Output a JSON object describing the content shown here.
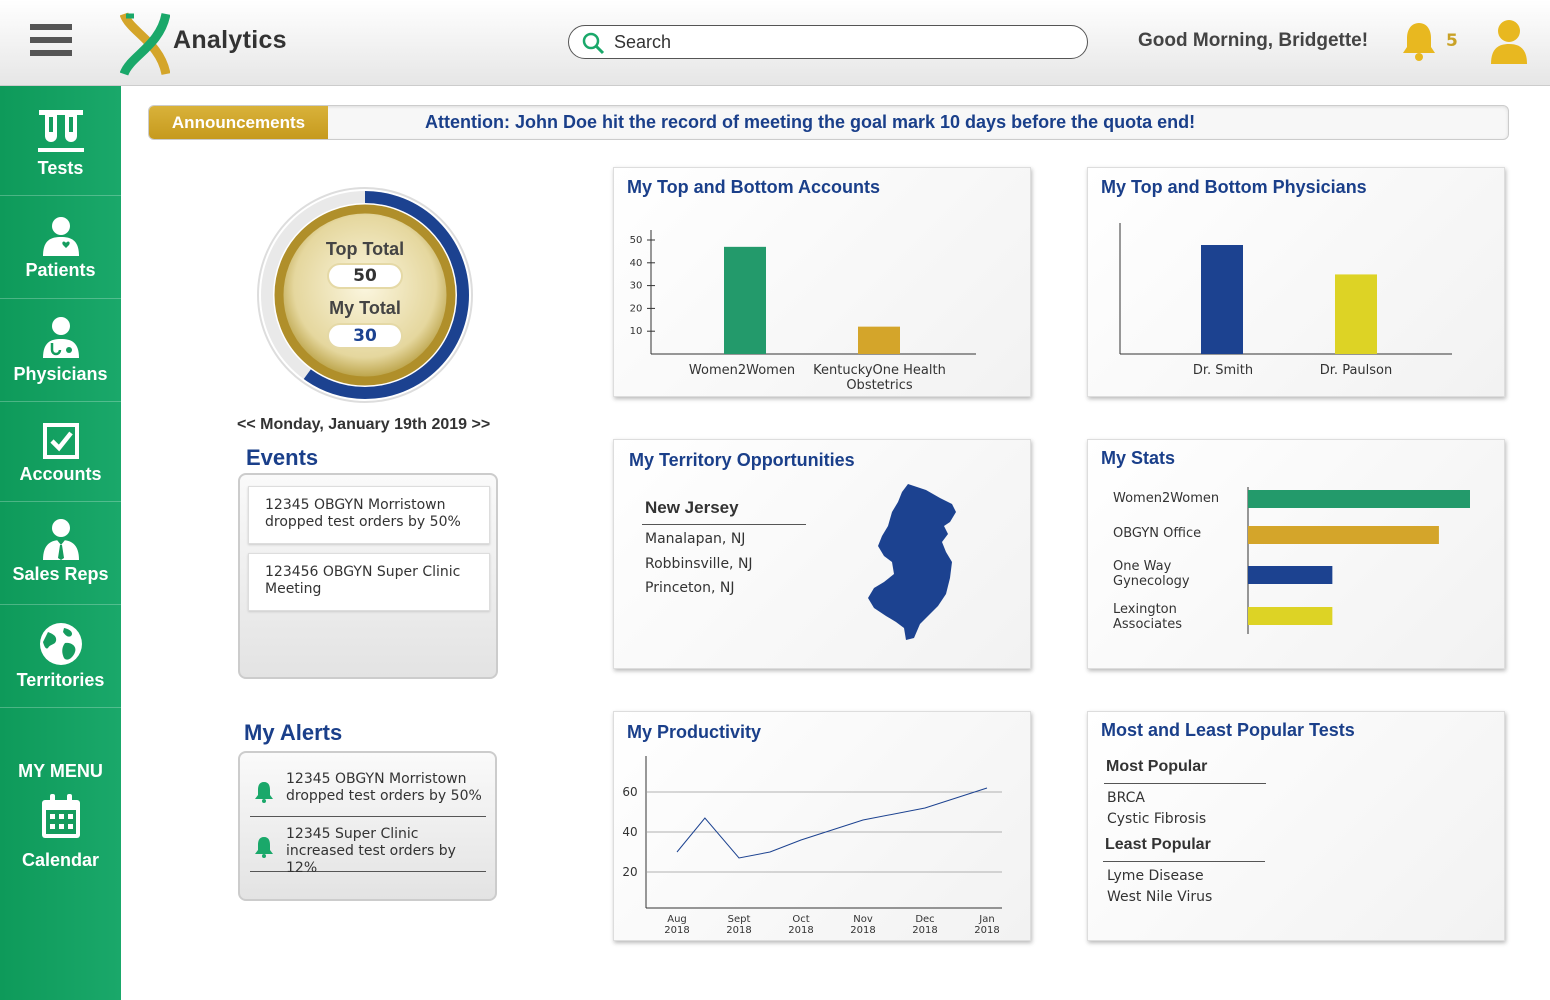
{
  "header": {
    "app_title": "Analytics",
    "search_placeholder": "Search",
    "greeting": "Good Morning, Bridgette!",
    "notification_count": "5"
  },
  "sidebar": {
    "items": [
      {
        "label": "Tests",
        "icon": "test-tubes-icon"
      },
      {
        "label": "Patients",
        "icon": "patient-icon"
      },
      {
        "label": "Physicians",
        "icon": "physician-icon"
      },
      {
        "label": "Accounts",
        "icon": "checkbox-icon"
      },
      {
        "label": "Sales Reps",
        "icon": "sales-rep-icon"
      },
      {
        "label": "Territories",
        "icon": "globe-icon"
      }
    ],
    "my_menu_label": "MY MENU",
    "calendar_label": "Calendar"
  },
  "announcements": {
    "tag": "Announcements",
    "text": "Attention: John Doe hit the record of meeting the goal mark 10 days before the quota end!"
  },
  "gauge": {
    "top_total_label": "Top Total",
    "top_total_value": "50",
    "my_total_label": "My Total",
    "my_total_value": "30",
    "progress_fraction": 0.6
  },
  "date_nav": "<< Monday, January 19th 2019 >>",
  "events": {
    "title": "Events",
    "items": [
      "12345 OBGYN Morristown dropped test orders by 50%",
      "123456 OBGYN Super Clinic Meeting"
    ]
  },
  "alerts": {
    "title": "My Alerts",
    "items": [
      "12345 OBGYN Morristown dropped test orders by 50%",
      "12345 Super Clinic increased test orders by 12%"
    ]
  },
  "colors": {
    "green": "#239a6b",
    "gold": "#d4a52a",
    "navy": "#1c4290",
    "yellow": "#ddd325"
  },
  "cards": {
    "accounts_title": "My Top and Bottom Accounts",
    "physicians_title": "My Top and Bottom Physicians",
    "territory_title": "My Territory Opportunities",
    "stats_title": "My Stats",
    "productivity_title": "My Productivity",
    "popular_title": "Most and Least Popular Tests"
  },
  "territory": {
    "state": "New Jersey",
    "cities": [
      "Manalapan, NJ",
      "Robbinsville, NJ",
      "Princeton, NJ"
    ]
  },
  "popular": {
    "most_label": "Most Popular",
    "most": [
      "BRCA",
      "Cystic Fibrosis"
    ],
    "least_label": "Least Popular",
    "least": [
      "Lyme Disease",
      "West Nile Virus"
    ]
  },
  "chart_data": [
    {
      "type": "bar",
      "title": "My Top and Bottom Accounts",
      "categories": [
        "Women2Women",
        "KentuckyOne Health Obstetrics"
      ],
      "values": [
        47,
        12
      ],
      "yticks": [
        10,
        20,
        30,
        40,
        50
      ],
      "ylim": [
        0,
        55
      ]
    },
    {
      "type": "bar",
      "title": "My Top and Bottom Physicians",
      "categories": [
        "Dr. Smith",
        "Dr. Paulson"
      ],
      "values": [
        100,
        73
      ],
      "ylim": [
        0,
        120
      ]
    },
    {
      "type": "bar",
      "orientation": "horizontal",
      "title": "My Stats",
      "categories": [
        "Women2Women",
        "OBGYN Office",
        "One Way Gynecology",
        "Lexington Associates"
      ],
      "values": [
        100,
        86,
        38,
        38
      ],
      "xlim": [
        0,
        100
      ]
    },
    {
      "type": "line",
      "title": "My Productivity",
      "x": [
        "Aug 2018",
        "Sept 2018",
        "Oct 2018",
        "Nov 2018",
        "Dec 2018",
        "Jan 2018"
      ],
      "points": [
        {
          "x": 0,
          "y": 30
        },
        {
          "x": 0.45,
          "y": 47
        },
        {
          "x": 1,
          "y": 27
        },
        {
          "x": 1.5,
          "y": 30
        },
        {
          "x": 2,
          "y": 36
        },
        {
          "x": 3,
          "y": 46
        },
        {
          "x": 4,
          "y": 52
        },
        {
          "x": 5,
          "y": 62
        }
      ],
      "yticks": [
        20,
        40,
        60
      ],
      "ylim": [
        10,
        70
      ]
    }
  ]
}
